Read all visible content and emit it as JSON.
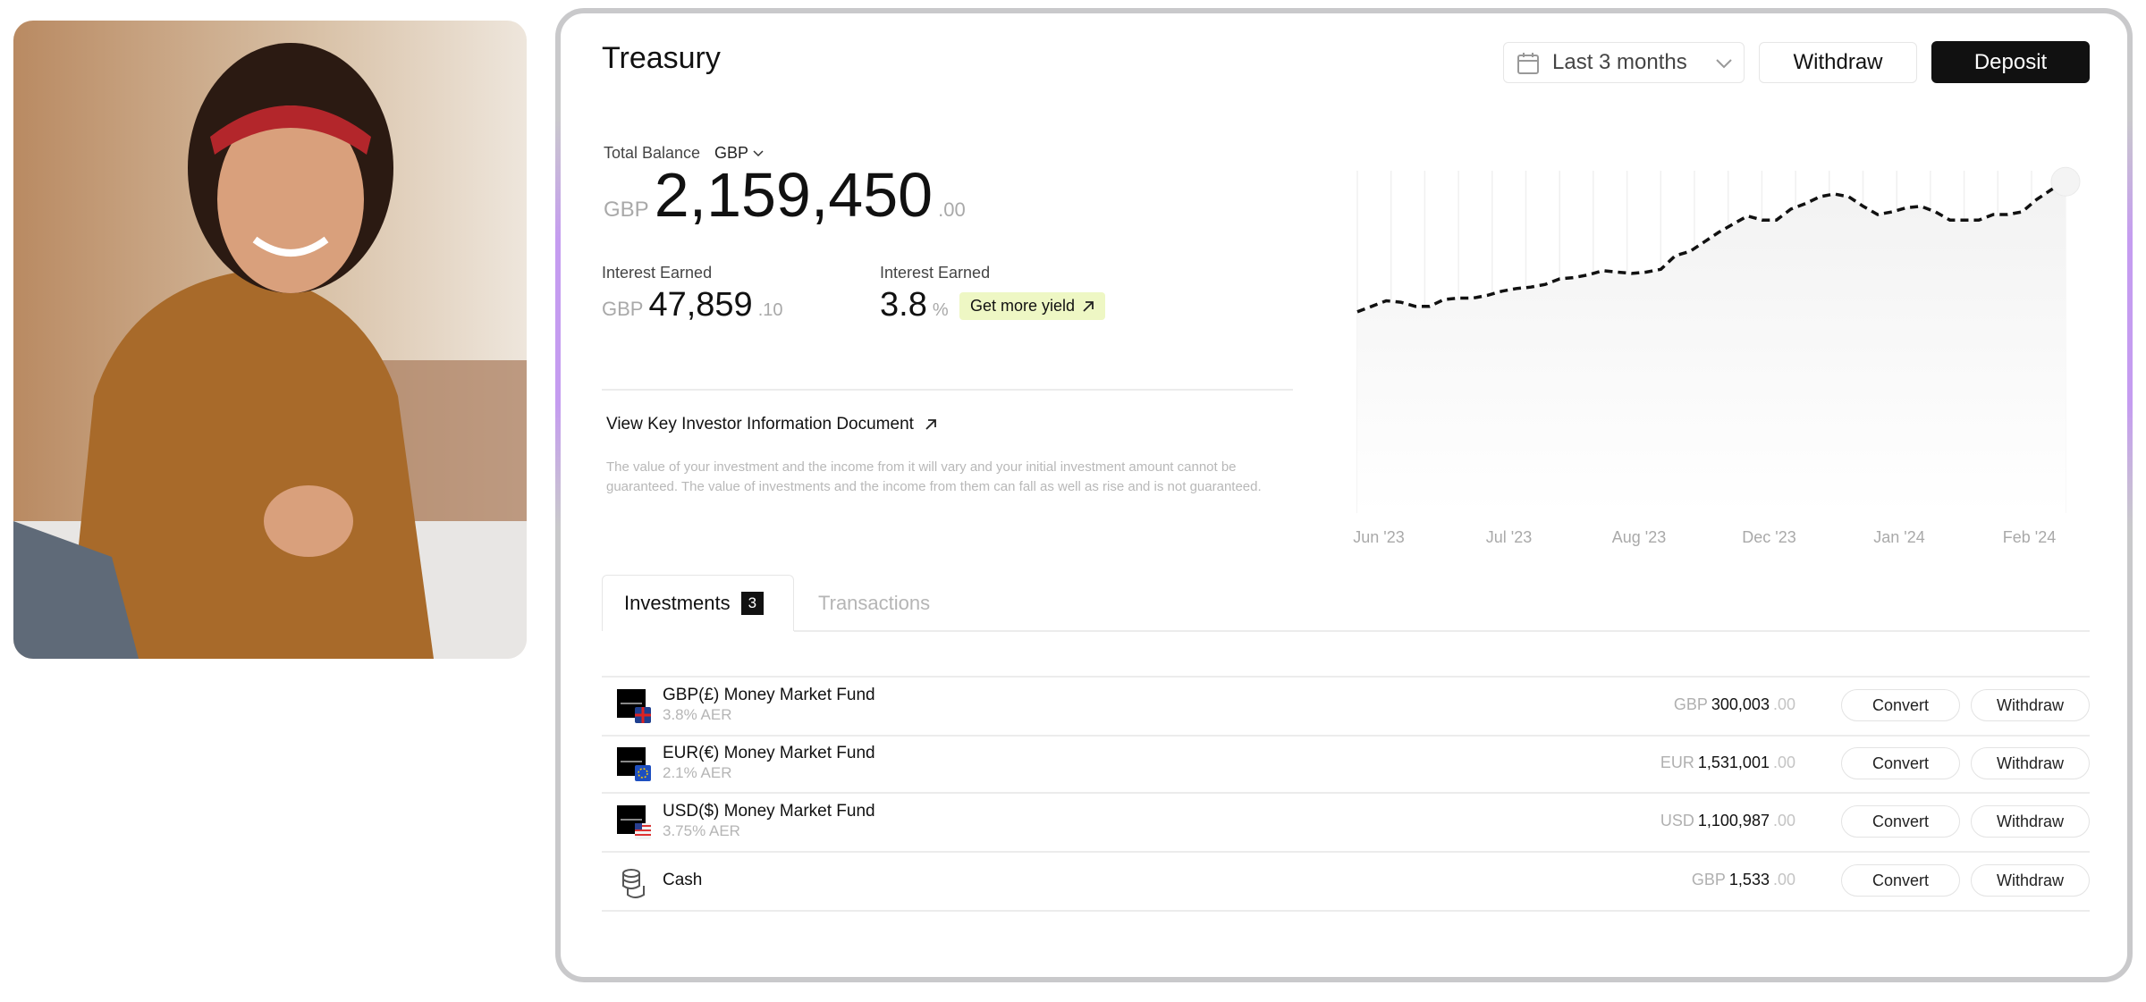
{
  "header": {
    "title": "Treasury",
    "date_range": "Last 3 months",
    "withdraw": "Withdraw",
    "deposit": "Deposit"
  },
  "balance": {
    "label": "Total Balance",
    "currency_select": "GBP",
    "currency": "GBP",
    "whole": "2,159,450",
    "fraction": ".00"
  },
  "interest": [
    {
      "label": "Interest Earned",
      "currency": "GBP",
      "whole": "47,859",
      "fraction": ".10"
    },
    {
      "label": "Interest Earned",
      "value": "3.8",
      "unit": "%",
      "badge": "Get more yield"
    }
  ],
  "kiid_link": "View Key Investor Information Document",
  "disclaimer": "The value of your investment and the income from it will vary and your initial investment amount cannot be guaranteed. The value of investments and the income from them can fall as well as rise and is not guaranteed.",
  "chart": {
    "type": "line",
    "xlabels": [
      "Jun '23",
      "Jul '23",
      "Aug '23",
      "Dec '23",
      "Jan '24",
      "Feb '24"
    ],
    "values": [
      58.8,
      60.4,
      62,
      61.6,
      60.4,
      60.4,
      62.4,
      62.8,
      62.8,
      63.6,
      64.8,
      65.6,
      66,
      66.8,
      68.4,
      68.8,
      69.6,
      70.8,
      70.4,
      70,
      70.4,
      71.2,
      75.2,
      76.4,
      79.2,
      82,
      84.4,
      86.8,
      85.6,
      85.6,
      88.8,
      90.4,
      92.4,
      93.2,
      92.4,
      89.6,
      87.2,
      88,
      89.2,
      89.6,
      88,
      85.6,
      85.6,
      85.6,
      87.2,
      87.2,
      88,
      91.6,
      94.4,
      96.8
    ],
    "ylim": [
      0,
      100
    ],
    "color": "#111111"
  },
  "tabs": [
    {
      "label": "Investments",
      "count": "3"
    },
    {
      "label": "Transactions"
    }
  ],
  "rows": [
    {
      "name": "GBP(£) Money Market Fund",
      "sub": "3.8% AER",
      "currency": "GBP",
      "whole": "300,003",
      "fraction": ".00",
      "convert": "Convert",
      "withdraw": "Withdraw"
    },
    {
      "name": "EUR(€) Money Market Fund",
      "sub": "2.1% AER",
      "currency": "EUR",
      "whole": "1,531,001",
      "fraction": ".00",
      "convert": "Convert",
      "withdraw": "Withdraw"
    },
    {
      "name": "USD($) Money Market Fund",
      "sub": "3.75% AER",
      "currency": "USD",
      "whole": "1,100,987",
      "fraction": ".00",
      "convert": "Convert",
      "withdraw": "Withdraw"
    },
    {
      "name": "Cash",
      "currency": "GBP",
      "whole": "1,533",
      "fraction": ".00",
      "convert": "Convert",
      "withdraw": "Withdraw"
    }
  ]
}
